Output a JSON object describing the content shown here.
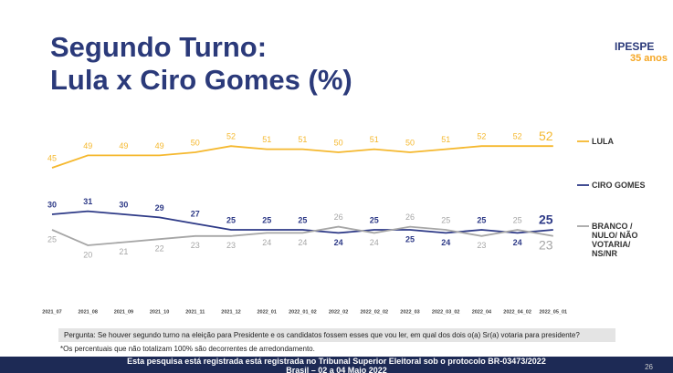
{
  "chart_data": {
    "type": "line",
    "title_line1": "Segundo Turno:",
    "title_line2": "Lula x Ciro Gomes (%)",
    "categories": [
      "2021_07",
      "2021_08",
      "2021_09",
      "2021_10",
      "2021_11",
      "2021_12",
      "2022_01",
      "2022_01_02",
      "2022_02",
      "2022_02_02",
      "2022_03",
      "2022_03_02",
      "2022_04",
      "2022_04_02",
      "2022_05_01"
    ],
    "series": [
      {
        "name": "LULA",
        "color": "#f5b82e",
        "values": [
          45,
          49,
          49,
          49,
          50,
          52,
          51,
          51,
          50,
          51,
          50,
          51,
          52,
          52,
          52
        ]
      },
      {
        "name": "CIRO GOMES",
        "color": "#2e3a87",
        "values": [
          30,
          31,
          30,
          29,
          27,
          25,
          25,
          25,
          24,
          25,
          25,
          24,
          25,
          24,
          25
        ]
      },
      {
        "name": "BRANCO / NULO/ NÃO VOTARIA/ NS/NR",
        "color": "#a6a6a6",
        "values": [
          25,
          20,
          21,
          22,
          23,
          23,
          24,
          24,
          26,
          24,
          26,
          25,
          23,
          25,
          23
        ]
      }
    ],
    "question": "Pergunta:  Se houver segundo turno na eleição para Presidente e os candidatos fossem esses que vou ler, em qual dos dois o(a) Sr(a) votaria para presidente?",
    "footnote": "*Os percentuais que não totalizam 100% são decorrentes de arredondamento.",
    "footer_line1": "Esta pesquisa está registrada está registrada no Tribunal Superior Eleitoral sob o protocolo BR-03473/2022",
    "footer_line2": "Brasil – 02 a 04 Maio 2022",
    "logo": "IPESPE",
    "logo_sub": "35 anos",
    "page_number": "26"
  }
}
